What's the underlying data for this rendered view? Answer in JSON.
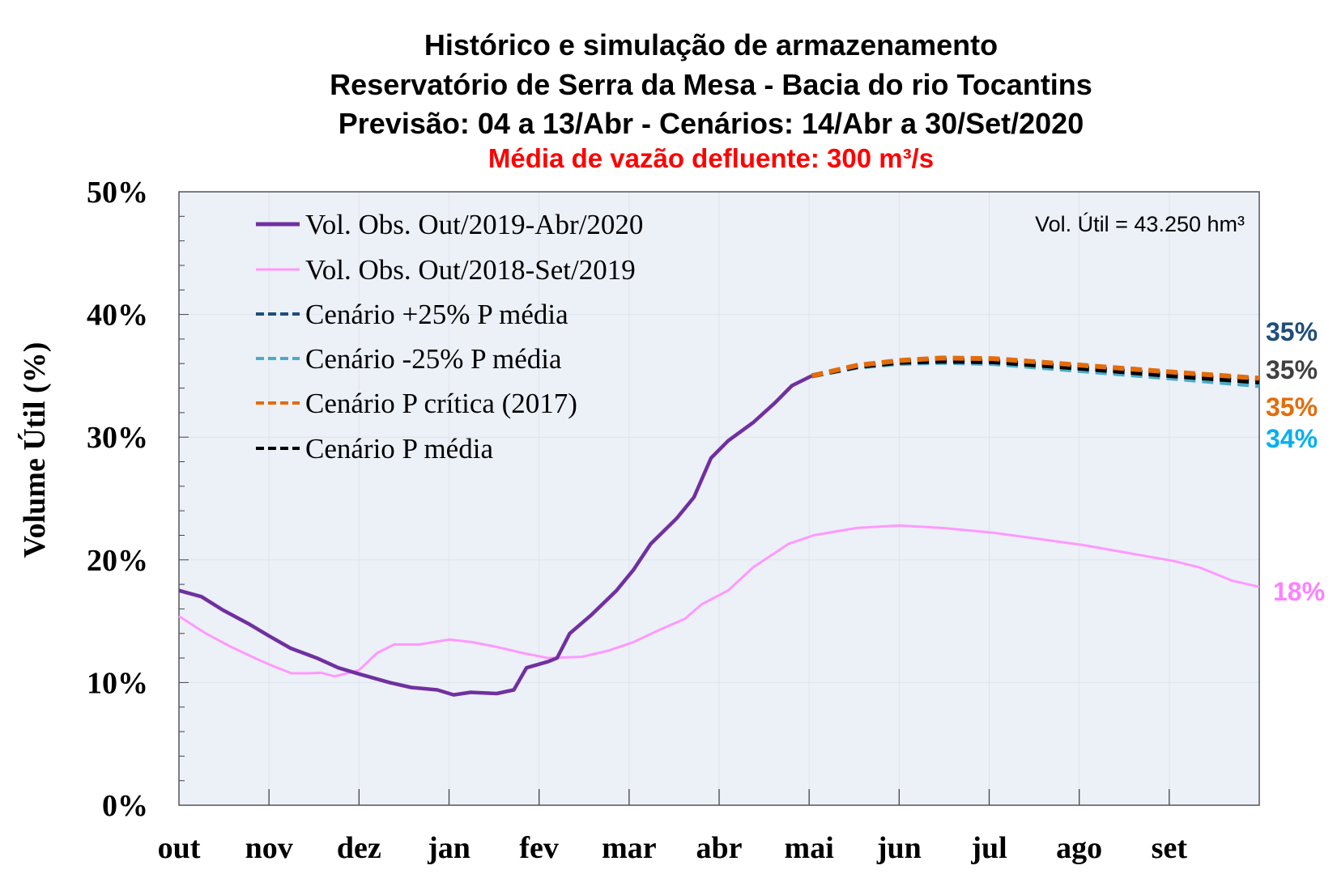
{
  "chart_data": {
    "type": "line",
    "title": [
      "Histórico e simulação de armazenamento",
      "Reservatório de Serra da Mesa - Bacia do rio Tocantins",
      "Previsão: 04 a 13/Abr - Cenários: 14/Abr a 30/Set/2020"
    ],
    "subtitle": "Média de vazão defluente: 300 m³/s",
    "ylabel": "Volume  Útil (%)",
    "xlabel": "",
    "annotation": "Vol. Útil  = 43.250 hm³",
    "ylim": [
      0,
      50
    ],
    "yticks": [
      "0%",
      "10%",
      "20%",
      "30%",
      "40%",
      "50%"
    ],
    "xticks": [
      "out",
      "nov",
      "dez",
      "jan",
      "fev",
      "mar",
      "abr",
      "mai",
      "jun",
      "jul",
      "ago",
      "set"
    ],
    "x_unit_note": "x = months since start of October",
    "xlim": [
      0,
      12
    ],
    "grid": true,
    "legend_position": "top-left",
    "series": [
      {
        "name": "Vol. Obs. Out/2019-Abr/2020",
        "color": "#7030A0",
        "style": "solid",
        "x": [
          0,
          0.25,
          0.49,
          0.77,
          1.0,
          1.24,
          1.53,
          1.77,
          2.0,
          2.34,
          2.58,
          2.87,
          3.05,
          3.24,
          3.53,
          3.72,
          3.86,
          4.1,
          4.2,
          4.34,
          4.58,
          4.86,
          5.05,
          5.24,
          5.53,
          5.72,
          5.91,
          6.1,
          6.38,
          6.62,
          6.81,
          7.03
        ],
        "y": [
          17.5,
          17.0,
          15.9,
          14.8,
          13.8,
          12.8,
          12.0,
          11.2,
          10.7,
          10.0,
          9.6,
          9.4,
          9.0,
          9.2,
          9.1,
          9.4,
          11.2,
          11.7,
          12.0,
          14.0,
          15.5,
          17.5,
          19.2,
          21.3,
          23.4,
          25.1,
          28.3,
          29.7,
          31.2,
          32.8,
          34.2,
          35.0
        ]
      },
      {
        "name": "Vol. Obs. Out/2018-Set/2019",
        "color": "#FF99FF",
        "style": "solid",
        "end_label": "18%",
        "x": [
          0,
          0.3,
          0.58,
          0.87,
          1.06,
          1.25,
          1.44,
          1.58,
          1.73,
          2.0,
          2.2,
          2.39,
          2.67,
          3.0,
          3.25,
          3.53,
          3.82,
          4.1,
          4.48,
          4.77,
          5.05,
          5.34,
          5.62,
          5.81,
          6.1,
          6.38,
          6.77,
          7.05,
          7.53,
          8.0,
          8.48,
          9.05,
          10.05,
          11.05,
          11.33,
          11.7,
          12
        ],
        "y": [
          15.4,
          14.0,
          12.9,
          11.9,
          11.3,
          10.75,
          10.75,
          10.8,
          10.5,
          11.0,
          12.4,
          13.1,
          13.1,
          13.5,
          13.3,
          12.9,
          12.4,
          12.0,
          12.1,
          12.6,
          13.3,
          14.3,
          15.2,
          16.4,
          17.5,
          19.4,
          21.3,
          22.0,
          22.6,
          22.8,
          22.6,
          22.2,
          21.2,
          19.9,
          19.4,
          18.3,
          17.8
        ]
      },
      {
        "name": "Cenário +25% P média",
        "color": "#1F4E79",
        "style": "dashed",
        "end_label": "35%",
        "x": [
          7.03,
          7.53,
          8.0,
          8.48,
          9.05,
          10.05,
          11.05,
          12
        ],
        "y": [
          35.0,
          35.8,
          36.15,
          36.3,
          36.25,
          35.7,
          35.15,
          34.7
        ]
      },
      {
        "name": "Cenário -25% P média",
        "color": "#4BACC6",
        "style": "dashed",
        "end_label": "34%",
        "x": [
          7.03,
          7.53,
          8.0,
          8.48,
          9.05,
          10.05,
          11.05,
          12
        ],
        "y": [
          35.0,
          35.7,
          36.0,
          36.1,
          36.0,
          35.4,
          34.8,
          34.2
        ]
      },
      {
        "name": "Cenário P crítica (2017)",
        "color": "#E46C0A",
        "style": "dashed",
        "end_label": "35%",
        "x": [
          7.03,
          7.53,
          8.0,
          8.48,
          9.05,
          10.05,
          11.05,
          12
        ],
        "y": [
          35.0,
          35.85,
          36.25,
          36.45,
          36.4,
          35.85,
          35.3,
          34.8
        ]
      },
      {
        "name": "Cenário P média",
        "color": "#000000",
        "style": "dashed",
        "end_label": "35%",
        "x": [
          7.03,
          7.53,
          8.0,
          8.48,
          9.05,
          10.05,
          11.05,
          12
        ],
        "y": [
          35.0,
          35.75,
          36.1,
          36.2,
          36.15,
          35.6,
          35.0,
          34.5
        ]
      }
    ],
    "end_labels": [
      {
        "text": "35%",
        "color": "#1F4E79"
      },
      {
        "text": "35%",
        "color": "#404040"
      },
      {
        "text": "35%",
        "color": "#E46C0A"
      },
      {
        "text": "34%",
        "color": "#00B0F0"
      },
      {
        "text": "18%",
        "color": "#FF80FF"
      }
    ],
    "plot_background": "#ECF0F7"
  }
}
